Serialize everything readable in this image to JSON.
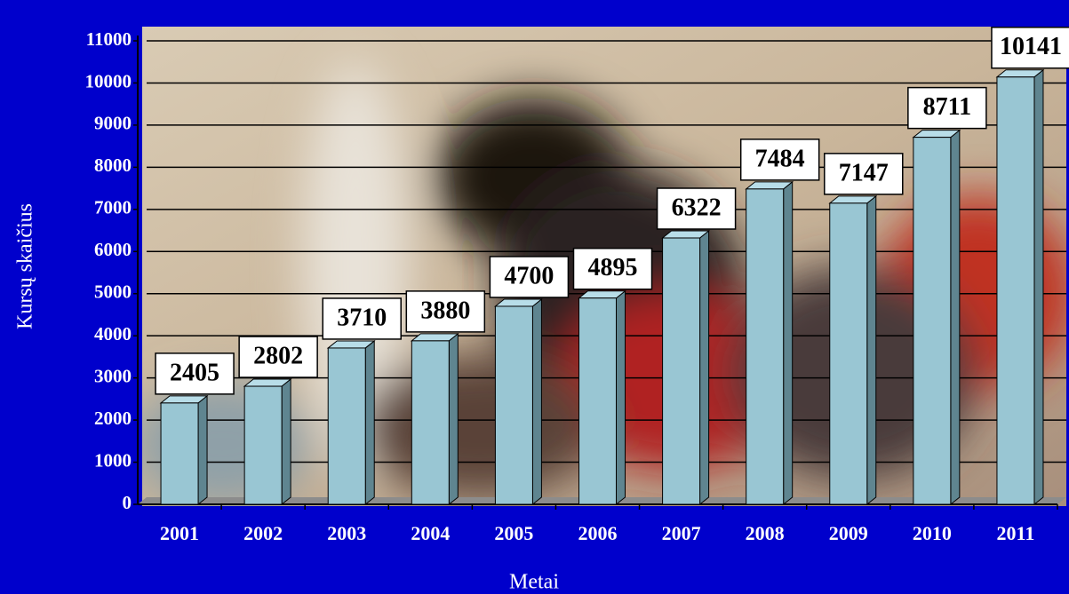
{
  "chart_data": {
    "type": "bar3d",
    "x_label": "Metai",
    "y_label": "Kursų skaičius",
    "categories": [
      "2001",
      "2002",
      "2003",
      "2004",
      "2005",
      "2006",
      "2007",
      "2008",
      "2009",
      "2010",
      "2011"
    ],
    "values": [
      2405,
      2802,
      3710,
      3880,
      4700,
      4895,
      6322,
      7484,
      7147,
      8711,
      10141
    ],
    "color": "#99c6d3",
    "ylim": [
      0,
      11000
    ],
    "yticks": [
      0,
      1000,
      2000,
      3000,
      4000,
      5000,
      6000,
      7000,
      8000,
      9000,
      10000,
      11000
    ],
    "grid": true
  }
}
